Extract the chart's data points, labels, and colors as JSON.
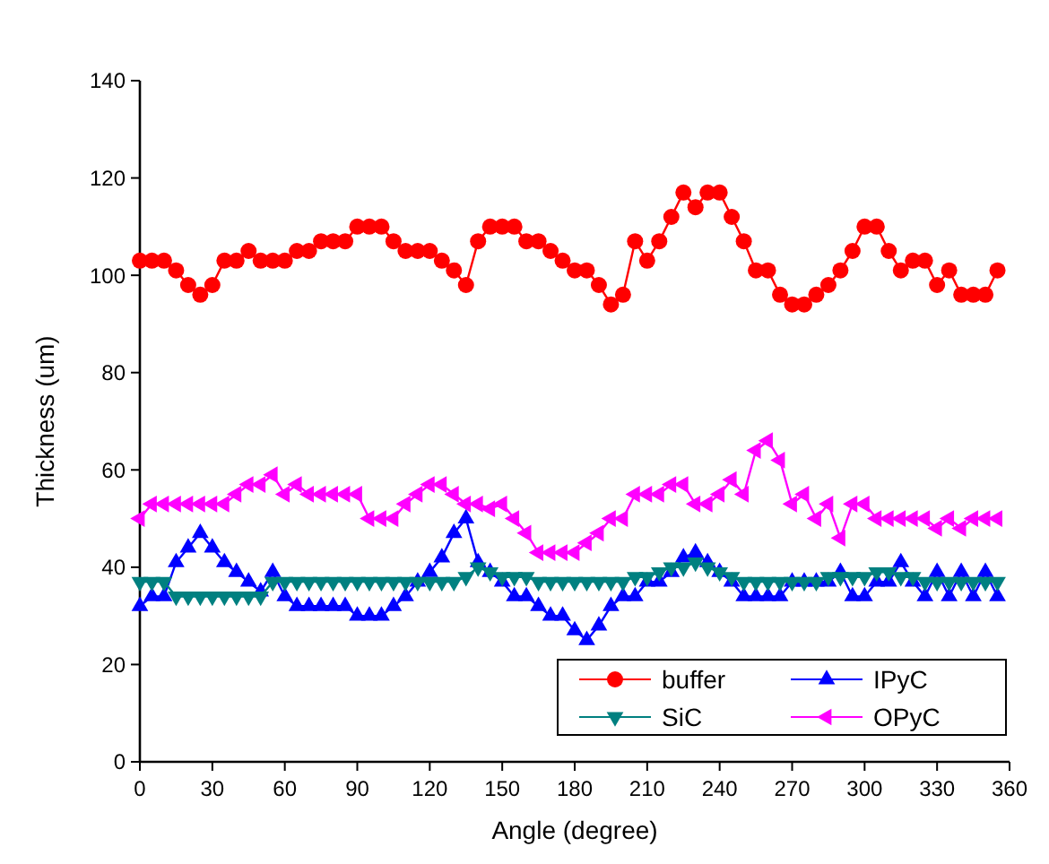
{
  "chart_data": {
    "type": "line",
    "xlabel": "Angle (degree)",
    "ylabel": "Thickness (um)",
    "x": [
      0,
      5,
      10,
      15,
      20,
      25,
      30,
      35,
      40,
      45,
      50,
      55,
      60,
      65,
      70,
      75,
      80,
      85,
      90,
      95,
      100,
      105,
      110,
      115,
      120,
      125,
      130,
      135,
      140,
      145,
      150,
      155,
      160,
      165,
      170,
      175,
      180,
      185,
      190,
      195,
      200,
      205,
      210,
      215,
      220,
      225,
      230,
      235,
      240,
      245,
      250,
      255,
      260,
      265,
      270,
      275,
      280,
      285,
      290,
      295,
      300,
      305,
      310,
      315,
      320,
      325,
      330,
      335,
      340,
      345,
      350,
      355
    ],
    "xlim": [
      0,
      360
    ],
    "xticks": [
      0,
      30,
      60,
      90,
      120,
      150,
      180,
      210,
      240,
      270,
      300,
      330,
      360
    ],
    "ylim": [
      0,
      140
    ],
    "yticks": [
      0,
      20,
      40,
      60,
      80,
      100,
      120,
      140
    ],
    "grid": false,
    "legend": "bottom right",
    "line_style": "solid",
    "series": [
      {
        "name": "buffer",
        "color": "#ff0000",
        "marker": "circle",
        "values": [
          103,
          103,
          103,
          101,
          98,
          96,
          98,
          103,
          103,
          105,
          103,
          103,
          103,
          105,
          105,
          107,
          107,
          107,
          110,
          110,
          110,
          107,
          105,
          105,
          105,
          103,
          101,
          98,
          107,
          110,
          110,
          110,
          107,
          107,
          105,
          103,
          101,
          101,
          98,
          94,
          96,
          107,
          103,
          107,
          112,
          117,
          114,
          117,
          117,
          112,
          107,
          101,
          101,
          96,
          94,
          94,
          96,
          98,
          101,
          105,
          110,
          110,
          105,
          101,
          103,
          103,
          98,
          101,
          96,
          96,
          96,
          101
        ]
      },
      {
        "name": "IPyC",
        "color": "#0000ff",
        "marker": "triangle",
        "values": [
          32,
          34,
          34,
          41,
          44,
          47,
          44,
          41,
          39,
          37,
          35,
          39,
          34,
          32,
          32,
          32,
          32,
          32,
          30,
          30,
          30,
          32,
          34,
          37,
          39,
          42,
          47,
          50,
          41,
          39,
          37,
          34,
          34,
          32,
          30,
          30,
          27,
          25,
          28,
          32,
          34,
          34,
          37,
          37,
          39,
          42,
          43,
          41,
          39,
          37,
          34,
          34,
          34,
          34,
          37,
          37,
          37,
          37,
          39,
          34,
          34,
          37,
          37,
          41,
          37,
          34,
          39,
          34,
          39,
          34,
          39,
          34
        ]
      },
      {
        "name": "SiC",
        "color": "#008080",
        "marker": "triangle-down",
        "values": [
          37,
          37,
          37,
          34,
          34,
          34,
          34,
          34,
          34,
          34,
          34,
          37,
          37,
          37,
          37,
          37,
          37,
          37,
          37,
          37,
          37,
          37,
          37,
          37,
          37,
          37,
          37,
          38,
          40,
          39,
          38,
          38,
          38,
          37,
          37,
          37,
          37,
          37,
          37,
          37,
          37,
          38,
          38,
          39,
          40,
          40,
          41,
          40,
          39,
          38,
          37,
          37,
          37,
          37,
          37,
          37,
          37,
          38,
          38,
          38,
          38,
          39,
          39,
          38,
          38,
          37,
          37,
          37,
          37,
          37,
          37,
          37
        ]
      },
      {
        "name": "OPyC",
        "color": "#ff00ff",
        "marker": "triangle-left",
        "values": [
          50,
          53,
          53,
          53,
          53,
          53,
          53,
          53,
          55,
          57,
          57,
          59,
          55,
          57,
          55,
          55,
          55,
          55,
          55,
          50,
          50,
          50,
          53,
          55,
          57,
          57,
          55,
          53,
          53,
          52,
          53,
          50,
          47,
          43,
          43,
          43,
          43,
          45,
          47,
          50,
          50,
          55,
          55,
          55,
          57,
          57,
          53,
          53,
          55,
          58,
          55,
          64,
          66,
          62,
          53,
          55,
          50,
          53,
          46,
          53,
          53,
          50,
          50,
          50,
          50,
          50,
          48,
          50,
          48,
          50,
          50,
          50
        ]
      }
    ]
  }
}
